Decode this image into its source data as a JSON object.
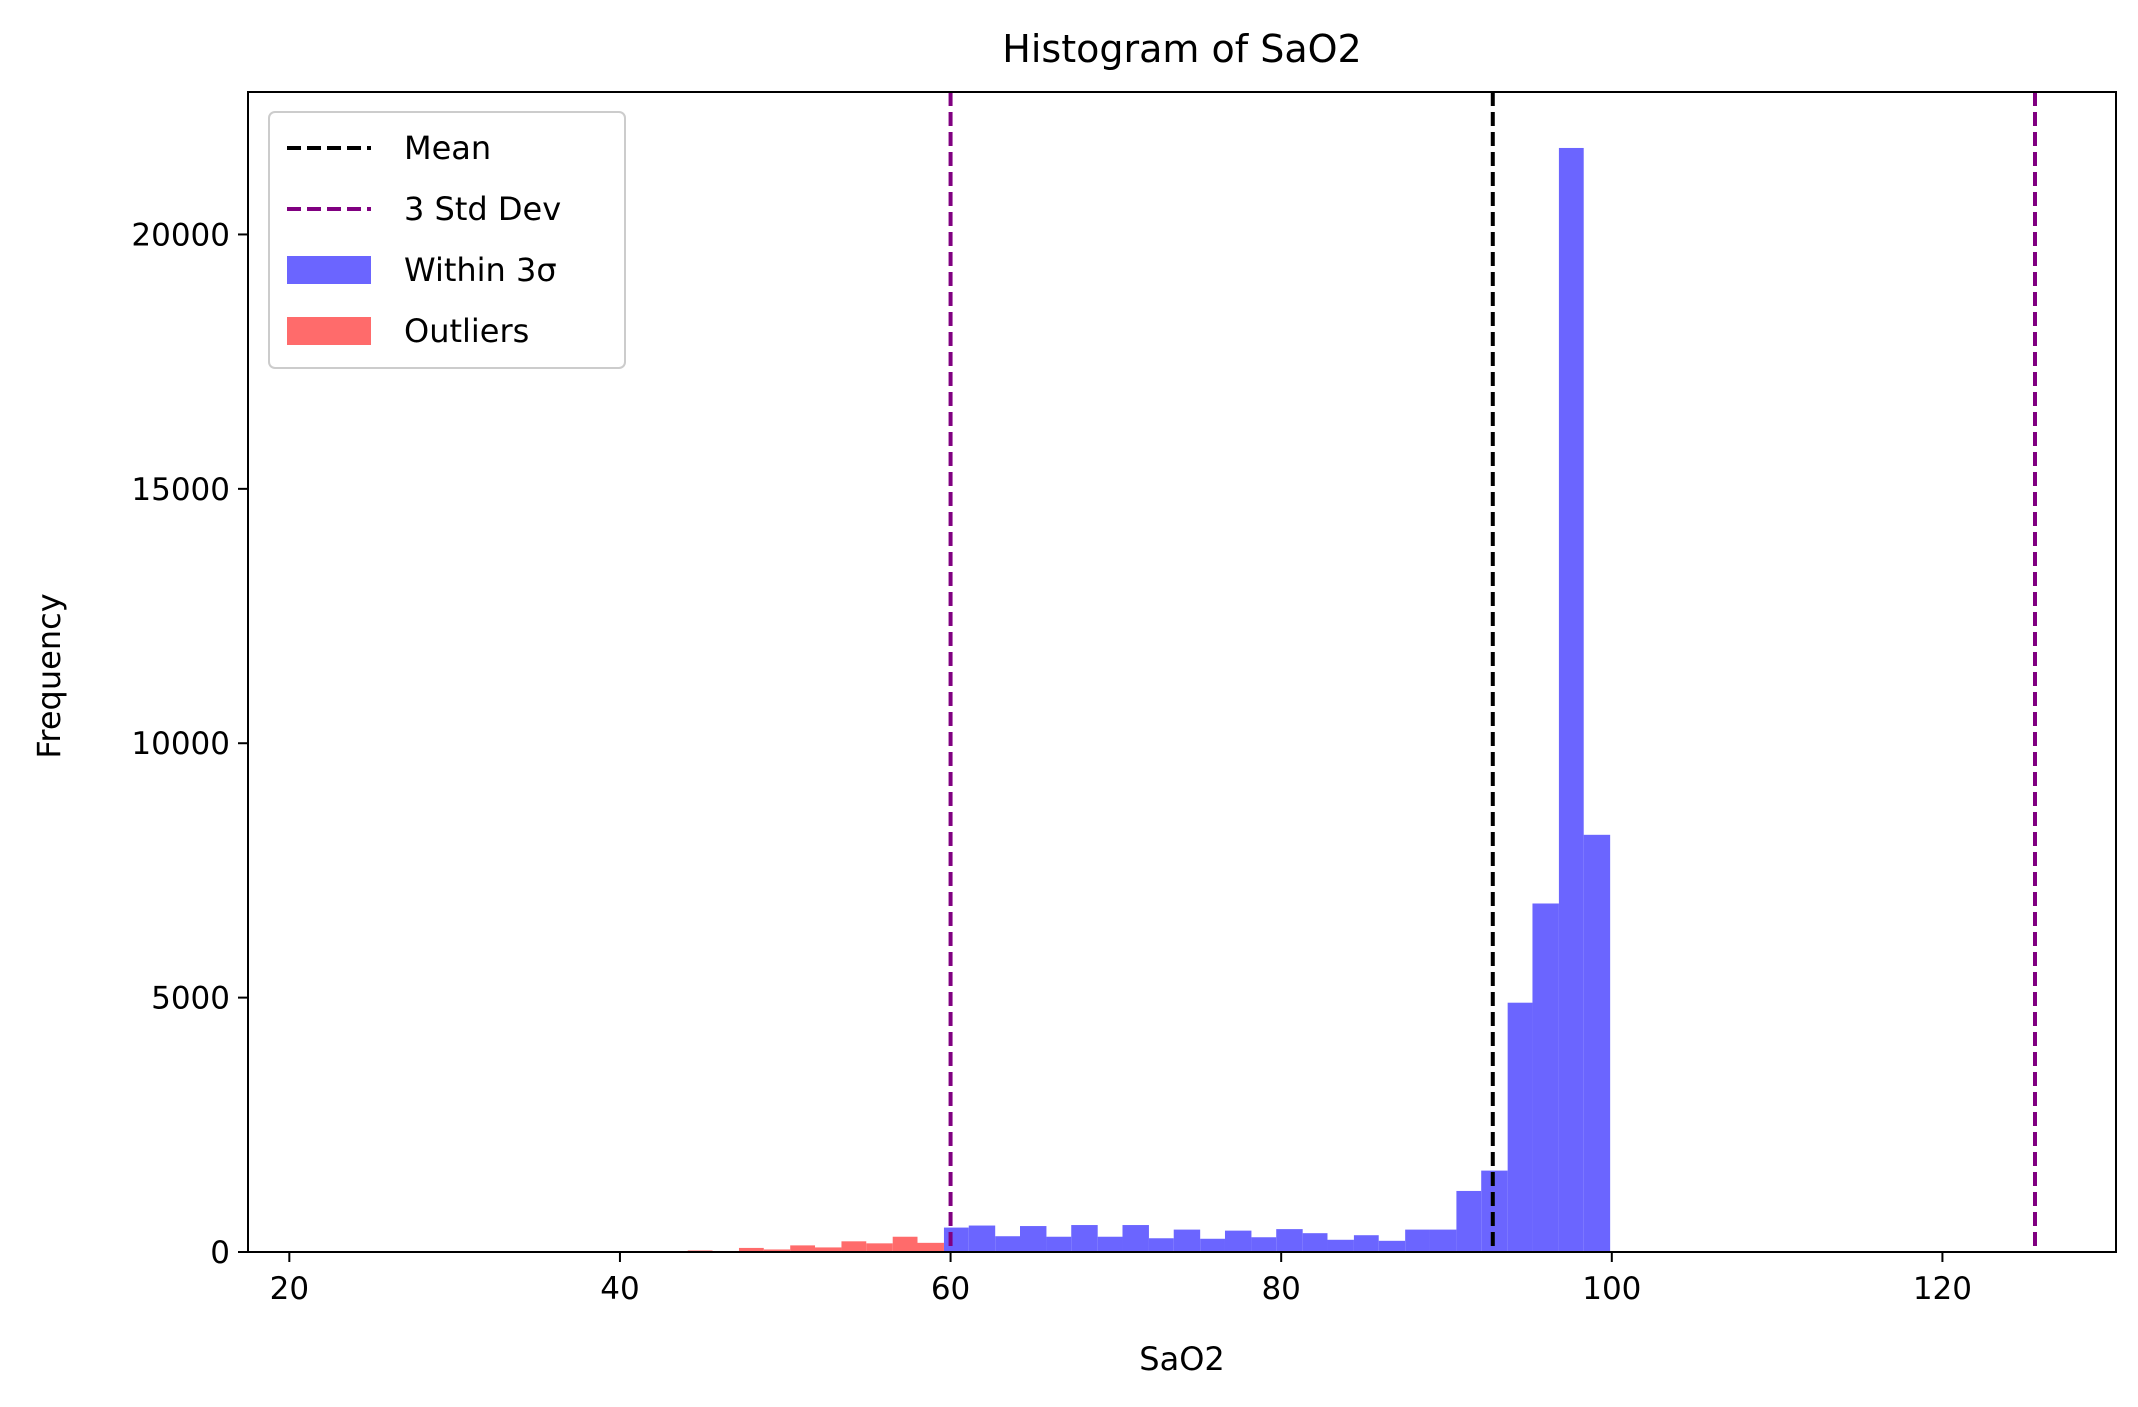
{
  "chart_data": {
    "type": "bar",
    "title": "Histogram of SaO2",
    "xlabel": "SaO2",
    "ylabel": "Frequency",
    "xlim": [
      17.5,
      130.5
    ],
    "ylim": [
      0,
      22800
    ],
    "xticks": [
      20,
      40,
      60,
      80,
      100,
      120
    ],
    "yticks": [
      0,
      5000,
      10000,
      15000,
      20000
    ],
    "legend_position": "upper-left",
    "bin_width": 1.55,
    "series": [
      {
        "name": "Within 3σ",
        "color": "#6b65ff",
        "bins": [
          {
            "x0": 59.6,
            "x1": 61.1,
            "value": 480
          },
          {
            "x0": 61.1,
            "x1": 62.7,
            "value": 520
          },
          {
            "x0": 62.7,
            "x1": 64.2,
            "value": 310
          },
          {
            "x0": 64.2,
            "x1": 65.8,
            "value": 510
          },
          {
            "x0": 65.8,
            "x1": 67.3,
            "value": 300
          },
          {
            "x0": 67.3,
            "x1": 68.9,
            "value": 530
          },
          {
            "x0": 68.9,
            "x1": 70.4,
            "value": 300
          },
          {
            "x0": 70.4,
            "x1": 72.0,
            "value": 530
          },
          {
            "x0": 72.0,
            "x1": 73.5,
            "value": 270
          },
          {
            "x0": 73.5,
            "x1": 75.1,
            "value": 440
          },
          {
            "x0": 75.1,
            "x1": 76.6,
            "value": 260
          },
          {
            "x0": 76.6,
            "x1": 78.2,
            "value": 420
          },
          {
            "x0": 78.2,
            "x1": 79.7,
            "value": 290
          },
          {
            "x0": 79.7,
            "x1": 81.3,
            "value": 450
          },
          {
            "x0": 81.3,
            "x1": 82.8,
            "value": 370
          },
          {
            "x0": 82.8,
            "x1": 84.4,
            "value": 240
          },
          {
            "x0": 84.4,
            "x1": 85.9,
            "value": 330
          },
          {
            "x0": 85.9,
            "x1": 87.5,
            "value": 220
          },
          {
            "x0": 87.5,
            "x1": 89.0,
            "value": 440
          },
          {
            "x0": 89.0,
            "x1": 90.6,
            "value": 440
          },
          {
            "x0": 90.6,
            "x1": 92.1,
            "value": 1200
          },
          {
            "x0": 92.1,
            "x1": 93.7,
            "value": 1600
          },
          {
            "x0": 93.7,
            "x1": 95.2,
            "value": 4900
          },
          {
            "x0": 95.2,
            "x1": 96.8,
            "value": 6850
          },
          {
            "x0": 96.8,
            "x1": 98.3,
            "value": 21700
          },
          {
            "x0": 98.3,
            "x1": 99.9,
            "value": 8200
          }
        ]
      },
      {
        "name": "Outliers",
        "color": "#ff6b6b",
        "bins": [
          {
            "x0": 44.1,
            "x1": 45.6,
            "value": 30
          },
          {
            "x0": 45.6,
            "x1": 47.2,
            "value": 20
          },
          {
            "x0": 47.2,
            "x1": 48.7,
            "value": 80
          },
          {
            "x0": 48.7,
            "x1": 50.3,
            "value": 50
          },
          {
            "x0": 50.3,
            "x1": 51.8,
            "value": 130
          },
          {
            "x0": 51.8,
            "x1": 53.4,
            "value": 90
          },
          {
            "x0": 53.4,
            "x1": 54.9,
            "value": 210
          },
          {
            "x0": 54.9,
            "x1": 56.5,
            "value": 170
          },
          {
            "x0": 56.5,
            "x1": 58.0,
            "value": 300
          },
          {
            "x0": 58.0,
            "x1": 59.6,
            "value": 180
          }
        ]
      }
    ],
    "reference_lines": [
      {
        "name": "Mean",
        "x": 92.8,
        "color": "#000000",
        "style": "dashed"
      },
      {
        "name": "3 Std Dev",
        "x": 60.0,
        "color": "#800080",
        "style": "dashed"
      },
      {
        "name": "3 Std Dev",
        "x": 125.6,
        "color": "#800080",
        "style": "dashed"
      }
    ],
    "legend": [
      {
        "label": "Mean",
        "kind": "line",
        "color": "#000000"
      },
      {
        "label": "3 Std Dev",
        "kind": "line",
        "color": "#800080"
      },
      {
        "label": "Within 3σ",
        "kind": "patch",
        "color": "#6b65ff"
      },
      {
        "label": "Outliers",
        "kind": "patch",
        "color": "#ff6b6b"
      }
    ]
  }
}
